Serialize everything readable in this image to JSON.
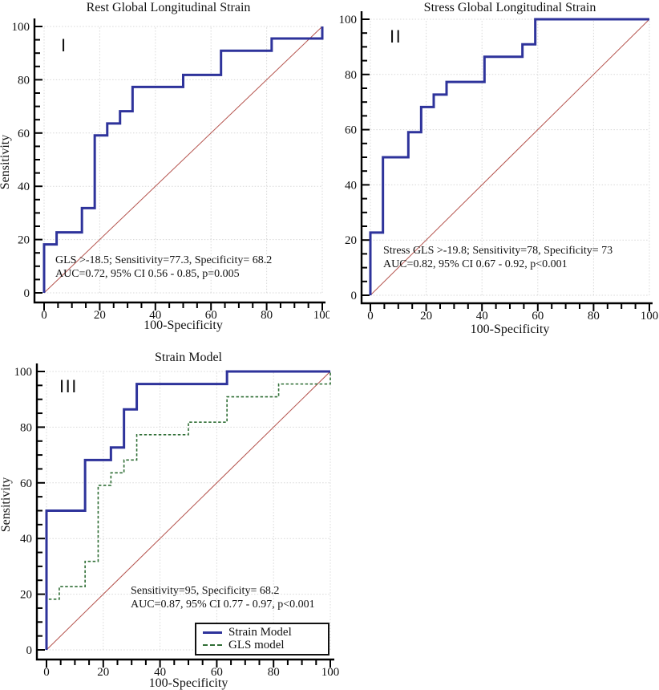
{
  "colors": {
    "roc_blue": "#2e339b",
    "diagonal_red": "#b5544e",
    "gls_green": "#2f6e35",
    "grid": "#d8d8d8",
    "axis": "#000000",
    "text": "#111111"
  },
  "chart_data": [
    {
      "type": "line",
      "panel": "I",
      "title": "Rest Global Longitudinal Strain",
      "xlabel": "100-Specificity",
      "ylabel": "Sensitivity",
      "xlim": [
        0,
        100
      ],
      "ylim": [
        0,
        100
      ],
      "xticks": [
        0,
        20,
        40,
        60,
        80,
        100
      ],
      "yticks": [
        0,
        20,
        40,
        60,
        80,
        100
      ],
      "minor_tick_step": 5,
      "grid": true,
      "diagonal_reference": true,
      "annotation": {
        "line1": "GLS >-18.5; Sensitivity=77.3, Specificity= 68.2",
        "line2": "AUC=0.72, 95% CI 0.56 - 0.85, p=0.005"
      },
      "series": [
        {
          "name": "Rest GLS ROC curve",
          "style": "solid",
          "color_key": "roc_blue",
          "points": [
            [
              0,
              0
            ],
            [
              0,
              18.2
            ],
            [
              4.5,
              18.2
            ],
            [
              4.5,
              22.7
            ],
            [
              13.6,
              22.7
            ],
            [
              13.6,
              31.8
            ],
            [
              18.2,
              31.8
            ],
            [
              18.2,
              59.1
            ],
            [
              22.7,
              59.1
            ],
            [
              22.7,
              63.6
            ],
            [
              27.3,
              63.6
            ],
            [
              27.3,
              68.2
            ],
            [
              31.8,
              68.2
            ],
            [
              31.8,
              77.3
            ],
            [
              50,
              77.3
            ],
            [
              50,
              81.8
            ],
            [
              63.6,
              81.8
            ],
            [
              63.6,
              90.9
            ],
            [
              81.8,
              90.9
            ],
            [
              81.8,
              95.5
            ],
            [
              100,
              95.5
            ],
            [
              100,
              100
            ]
          ]
        }
      ]
    },
    {
      "type": "line",
      "panel": "II",
      "title": "Stress Global Longitudinal Strain",
      "xlabel": "100-Specificity",
      "xlim": [
        0,
        100
      ],
      "ylim": [
        0,
        100
      ],
      "xticks": [
        0,
        20,
        40,
        60,
        80,
        100
      ],
      "yticks": [
        0,
        20,
        40,
        60,
        80,
        100
      ],
      "minor_tick_step": 5,
      "grid": true,
      "diagonal_reference": true,
      "annotation": {
        "line1": "Stress GLS >-19.8; Sensitivity=78, Specificity= 73",
        "line2": "AUC=0.82, 95% CI 0.67 - 0.92, p<0.001"
      },
      "series": [
        {
          "name": "Stress GLS ROC curve",
          "style": "solid",
          "color_key": "roc_blue",
          "points": [
            [
              0,
              0
            ],
            [
              0,
              22.7
            ],
            [
              4.5,
              22.7
            ],
            [
              4.5,
              50
            ],
            [
              13.6,
              50
            ],
            [
              13.6,
              59.1
            ],
            [
              18.2,
              59.1
            ],
            [
              18.2,
              68.2
            ],
            [
              22.7,
              68.2
            ],
            [
              22.7,
              72.7
            ],
            [
              27.3,
              72.7
            ],
            [
              27.3,
              77.3
            ],
            [
              40.9,
              77.3
            ],
            [
              40.9,
              86.4
            ],
            [
              54.5,
              86.4
            ],
            [
              54.5,
              90.9
            ],
            [
              59.1,
              90.9
            ],
            [
              59.1,
              100
            ],
            [
              100,
              100
            ]
          ]
        }
      ]
    },
    {
      "type": "line",
      "panel": "III",
      "title": "Strain Model",
      "xlabel": "100-Specificity",
      "ylabel": "Sensitivity",
      "xlim": [
        0,
        100
      ],
      "ylim": [
        0,
        100
      ],
      "xticks": [
        0,
        20,
        40,
        60,
        80,
        100
      ],
      "yticks": [
        0,
        20,
        40,
        60,
        80,
        100
      ],
      "minor_tick_step": 5,
      "grid": true,
      "diagonal_reference": true,
      "annotation": {
        "line1": "Sensitivity=95, Specificity= 68.2",
        "line2": "AUC=0.87, 95% CI 0.77 - 0.97, p<0.001"
      },
      "legend": {
        "position": "bottom-right",
        "items": [
          "Strain Model",
          "GLS model"
        ]
      },
      "series": [
        {
          "name": "Strain Model",
          "style": "solid",
          "color_key": "roc_blue",
          "points": [
            [
              0,
              0
            ],
            [
              0,
              50
            ],
            [
              13.6,
              50
            ],
            [
              13.6,
              68.2
            ],
            [
              22.7,
              68.2
            ],
            [
              22.7,
              72.7
            ],
            [
              27.3,
              72.7
            ],
            [
              27.3,
              86.4
            ],
            [
              31.8,
              86.4
            ],
            [
              31.8,
              95.5
            ],
            [
              63.6,
              95.5
            ],
            [
              63.6,
              100
            ],
            [
              100,
              100
            ]
          ]
        },
        {
          "name": "GLS model",
          "style": "dashed",
          "color_key": "gls_green",
          "points": [
            [
              0,
              0
            ],
            [
              0,
              18.2
            ],
            [
              4.5,
              18.2
            ],
            [
              4.5,
              22.7
            ],
            [
              13.6,
              22.7
            ],
            [
              13.6,
              31.8
            ],
            [
              18.2,
              31.8
            ],
            [
              18.2,
              59.1
            ],
            [
              22.7,
              59.1
            ],
            [
              22.7,
              63.6
            ],
            [
              27.3,
              63.6
            ],
            [
              27.3,
              68.2
            ],
            [
              31.8,
              68.2
            ],
            [
              31.8,
              77.3
            ],
            [
              50,
              77.3
            ],
            [
              50,
              81.8
            ],
            [
              63.6,
              81.8
            ],
            [
              63.6,
              90.9
            ],
            [
              81.8,
              90.9
            ],
            [
              81.8,
              95.5
            ],
            [
              100,
              95.5
            ],
            [
              100,
              100
            ]
          ]
        }
      ]
    }
  ]
}
